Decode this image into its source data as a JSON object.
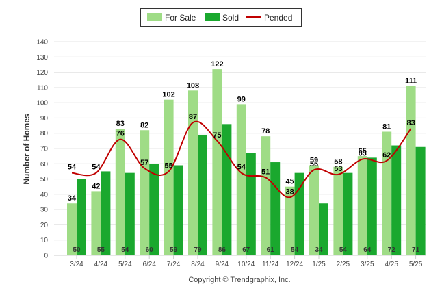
{
  "chart_data": {
    "type": "bar",
    "categories": [
      "3/24",
      "4/24",
      "5/24",
      "6/24",
      "7/24",
      "8/24",
      "9/24",
      "10/24",
      "11/24",
      "12/24",
      "1/25",
      "2/25",
      "3/25",
      "4/25",
      "5/25"
    ],
    "series": [
      {
        "name": "For Sale",
        "kind": "bar",
        "color": "#9fdc86",
        "values": [
          34,
          42,
          83,
          82,
          102,
          108,
          122,
          99,
          78,
          45,
          59,
          58,
          65,
          81,
          111
        ]
      },
      {
        "name": "Sold",
        "kind": "bar",
        "color": "#1aa82e",
        "values": [
          50,
          55,
          54,
          60,
          59,
          79,
          86,
          67,
          61,
          54,
          34,
          54,
          64,
          72,
          71
        ]
      },
      {
        "name": "Pended",
        "kind": "line",
        "color": "#c00000",
        "values": [
          54,
          54,
          76,
          57,
          55,
          87,
          75,
          54,
          51,
          38,
          56,
          53,
          63,
          62,
          83
        ]
      }
    ],
    "title": "",
    "xlabel": "",
    "ylabel": "Number of Homes",
    "ylim": [
      0,
      140
    ],
    "yticks": [
      0,
      10,
      20,
      30,
      40,
      50,
      60,
      70,
      80,
      90,
      100,
      110,
      120,
      130,
      140
    ],
    "grid": true,
    "legend_position": "top-center"
  },
  "footer": {
    "copyright": "Copyright © Trendgraphix, Inc."
  }
}
